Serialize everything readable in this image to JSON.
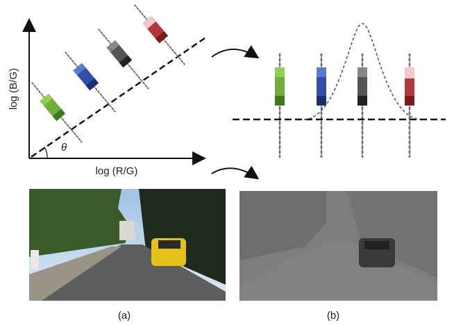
{
  "axes": {
    "y_label": "log (B/G)",
    "x_label": "log (R/G)",
    "angle_label": "θ"
  },
  "panels": [
    {
      "label": "(a)"
    },
    {
      "label": "(b)"
    }
  ]
}
